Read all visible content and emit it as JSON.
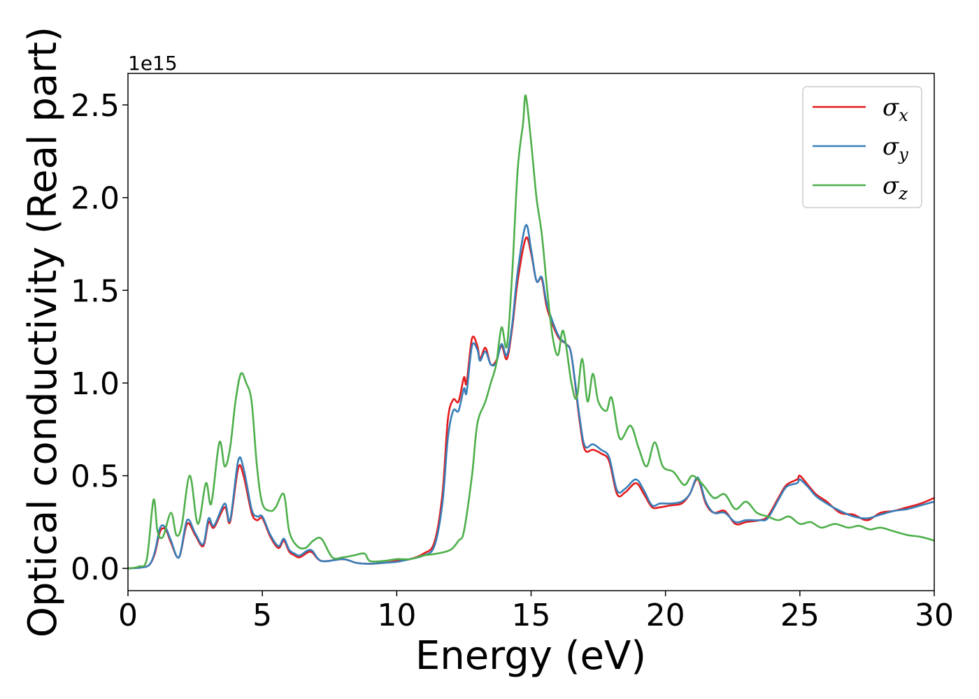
{
  "chart_data": {
    "type": "line",
    "xlabel": "Energy (eV)",
    "ylabel": "Optical conductivity (Real part)",
    "y_offset_label": "1e15",
    "xlim": [
      0,
      30
    ],
    "ylim": [
      -0.12,
      2.67
    ],
    "x_ticks": [
      0,
      5,
      10,
      15,
      20,
      25,
      30
    ],
    "x_tick_labels": [
      "0",
      "5",
      "10",
      "15",
      "20",
      "25",
      "30"
    ],
    "y_ticks": [
      0.0,
      0.5,
      1.0,
      1.5,
      2.0,
      2.5
    ],
    "y_tick_labels": [
      "0.0",
      "0.5",
      "1.0",
      "1.5",
      "2.0",
      "2.5"
    ],
    "grid": false,
    "legend_position": "top-right",
    "series": [
      {
        "name": "σ",
        "subscript": "x",
        "color": "#e41a1c",
        "points": [
          [
            0,
            0
          ],
          [
            0.5,
            0.005
          ],
          [
            0.8,
            0.02
          ],
          [
            1.0,
            0.08
          ],
          [
            1.2,
            0.2
          ],
          [
            1.4,
            0.21
          ],
          [
            1.6,
            0.14
          ],
          [
            1.9,
            0.06
          ],
          [
            2.2,
            0.24
          ],
          [
            2.5,
            0.18
          ],
          [
            2.8,
            0.12
          ],
          [
            3.0,
            0.25
          ],
          [
            3.2,
            0.22
          ],
          [
            3.6,
            0.33
          ],
          [
            3.8,
            0.25
          ],
          [
            4.1,
            0.54
          ],
          [
            4.3,
            0.5
          ],
          [
            4.6,
            0.3
          ],
          [
            4.8,
            0.26
          ],
          [
            5.0,
            0.27
          ],
          [
            5.3,
            0.17
          ],
          [
            5.6,
            0.11
          ],
          [
            5.8,
            0.15
          ],
          [
            6.0,
            0.09
          ],
          [
            6.2,
            0.07
          ],
          [
            6.4,
            0.06
          ],
          [
            6.8,
            0.09
          ],
          [
            7.2,
            0.04
          ],
          [
            8.0,
            0.05
          ],
          [
            8.5,
            0.03
          ],
          [
            9.0,
            0.025
          ],
          [
            9.5,
            0.03
          ],
          [
            10.0,
            0.04
          ],
          [
            10.5,
            0.05
          ],
          [
            11.0,
            0.08
          ],
          [
            11.4,
            0.14
          ],
          [
            11.7,
            0.4
          ],
          [
            11.9,
            0.8
          ],
          [
            12.1,
            0.91
          ],
          [
            12.3,
            0.9
          ],
          [
            12.5,
            1.03
          ],
          [
            12.6,
            1.0
          ],
          [
            12.8,
            1.24
          ],
          [
            13.0,
            1.2
          ],
          [
            13.1,
            1.13
          ],
          [
            13.3,
            1.19
          ],
          [
            13.5,
            1.1
          ],
          [
            13.7,
            1.12
          ],
          [
            13.9,
            1.2
          ],
          [
            14.1,
            1.13
          ],
          [
            14.3,
            1.3
          ],
          [
            14.5,
            1.55
          ],
          [
            14.8,
            1.78
          ],
          [
            15.0,
            1.7
          ],
          [
            15.2,
            1.55
          ],
          [
            15.4,
            1.56
          ],
          [
            15.6,
            1.4
          ],
          [
            16.0,
            1.25
          ],
          [
            16.3,
            1.21
          ],
          [
            16.5,
            1.15
          ],
          [
            16.8,
            0.8
          ],
          [
            17.0,
            0.64
          ],
          [
            17.3,
            0.64
          ],
          [
            17.6,
            0.62
          ],
          [
            17.9,
            0.58
          ],
          [
            18.2,
            0.4
          ],
          [
            18.5,
            0.41
          ],
          [
            18.9,
            0.46
          ],
          [
            19.2,
            0.4
          ],
          [
            19.5,
            0.33
          ],
          [
            19.8,
            0.33
          ],
          [
            20.2,
            0.34
          ],
          [
            20.6,
            0.35
          ],
          [
            20.9,
            0.4
          ],
          [
            21.2,
            0.48
          ],
          [
            21.5,
            0.35
          ],
          [
            21.8,
            0.3
          ],
          [
            22.2,
            0.31
          ],
          [
            22.6,
            0.24
          ],
          [
            23.0,
            0.25
          ],
          [
            23.5,
            0.26
          ],
          [
            23.8,
            0.28
          ],
          [
            24.2,
            0.38
          ],
          [
            24.5,
            0.45
          ],
          [
            24.9,
            0.48
          ],
          [
            25.0,
            0.5
          ],
          [
            25.3,
            0.45
          ],
          [
            25.6,
            0.4
          ],
          [
            26.0,
            0.36
          ],
          [
            26.5,
            0.3
          ],
          [
            27.0,
            0.29
          ],
          [
            27.5,
            0.26
          ],
          [
            28.0,
            0.3
          ],
          [
            28.5,
            0.31
          ],
          [
            29.0,
            0.33
          ],
          [
            29.5,
            0.35
          ],
          [
            30.0,
            0.38
          ]
        ]
      },
      {
        "name": "σ",
        "subscript": "y",
        "color": "#377eb8",
        "points": [
          [
            0,
            0
          ],
          [
            0.5,
            0.005
          ],
          [
            0.8,
            0.02
          ],
          [
            1.0,
            0.09
          ],
          [
            1.2,
            0.22
          ],
          [
            1.4,
            0.22
          ],
          [
            1.6,
            0.15
          ],
          [
            1.9,
            0.06
          ],
          [
            2.2,
            0.26
          ],
          [
            2.5,
            0.19
          ],
          [
            2.8,
            0.13
          ],
          [
            3.0,
            0.27
          ],
          [
            3.2,
            0.23
          ],
          [
            3.6,
            0.35
          ],
          [
            3.8,
            0.26
          ],
          [
            4.1,
            0.58
          ],
          [
            4.3,
            0.54
          ],
          [
            4.6,
            0.32
          ],
          [
            4.8,
            0.28
          ],
          [
            5.0,
            0.28
          ],
          [
            5.3,
            0.18
          ],
          [
            5.6,
            0.12
          ],
          [
            5.8,
            0.16
          ],
          [
            6.0,
            0.1
          ],
          [
            6.2,
            0.08
          ],
          [
            6.4,
            0.07
          ],
          [
            6.8,
            0.1
          ],
          [
            7.2,
            0.04
          ],
          [
            8.0,
            0.05
          ],
          [
            8.5,
            0.03
          ],
          [
            9.0,
            0.025
          ],
          [
            9.5,
            0.03
          ],
          [
            10.0,
            0.035
          ],
          [
            10.5,
            0.05
          ],
          [
            11.0,
            0.07
          ],
          [
            11.4,
            0.12
          ],
          [
            11.7,
            0.35
          ],
          [
            11.9,
            0.7
          ],
          [
            12.1,
            0.85
          ],
          [
            12.3,
            0.85
          ],
          [
            12.5,
            0.97
          ],
          [
            12.6,
            0.95
          ],
          [
            12.8,
            1.2
          ],
          [
            13.0,
            1.18
          ],
          [
            13.1,
            1.12
          ],
          [
            13.3,
            1.17
          ],
          [
            13.5,
            1.1
          ],
          [
            13.7,
            1.11
          ],
          [
            13.9,
            1.21
          ],
          [
            14.1,
            1.15
          ],
          [
            14.3,
            1.32
          ],
          [
            14.5,
            1.6
          ],
          [
            14.8,
            1.85
          ],
          [
            15.0,
            1.72
          ],
          [
            15.2,
            1.55
          ],
          [
            15.4,
            1.57
          ],
          [
            15.6,
            1.42
          ],
          [
            16.0,
            1.26
          ],
          [
            16.3,
            1.21
          ],
          [
            16.5,
            1.15
          ],
          [
            16.8,
            0.82
          ],
          [
            17.0,
            0.66
          ],
          [
            17.3,
            0.67
          ],
          [
            17.6,
            0.64
          ],
          [
            17.9,
            0.6
          ],
          [
            18.2,
            0.42
          ],
          [
            18.5,
            0.43
          ],
          [
            18.9,
            0.48
          ],
          [
            19.2,
            0.42
          ],
          [
            19.5,
            0.34
          ],
          [
            19.8,
            0.35
          ],
          [
            20.2,
            0.35
          ],
          [
            20.6,
            0.36
          ],
          [
            20.9,
            0.4
          ],
          [
            21.2,
            0.49
          ],
          [
            21.5,
            0.36
          ],
          [
            21.8,
            0.3
          ],
          [
            22.2,
            0.3
          ],
          [
            22.6,
            0.25
          ],
          [
            23.0,
            0.26
          ],
          [
            23.5,
            0.26
          ],
          [
            23.8,
            0.27
          ],
          [
            24.2,
            0.37
          ],
          [
            24.5,
            0.44
          ],
          [
            24.9,
            0.46
          ],
          [
            25.0,
            0.48
          ],
          [
            25.3,
            0.44
          ],
          [
            25.6,
            0.39
          ],
          [
            26.0,
            0.35
          ],
          [
            26.5,
            0.31
          ],
          [
            27.0,
            0.28
          ],
          [
            27.5,
            0.27
          ],
          [
            28.0,
            0.29
          ],
          [
            28.5,
            0.31
          ],
          [
            29.0,
            0.32
          ],
          [
            29.5,
            0.34
          ],
          [
            30.0,
            0.36
          ]
        ]
      },
      {
        "name": "σ",
        "subscript": "z",
        "color": "#4daf4a",
        "points": [
          [
            0,
            0
          ],
          [
            0.4,
            0.01
          ],
          [
            0.7,
            0.05
          ],
          [
            0.95,
            0.37
          ],
          [
            1.1,
            0.2
          ],
          [
            1.3,
            0.17
          ],
          [
            1.6,
            0.3
          ],
          [
            1.8,
            0.18
          ],
          [
            2.0,
            0.23
          ],
          [
            2.3,
            0.5
          ],
          [
            2.6,
            0.24
          ],
          [
            2.9,
            0.46
          ],
          [
            3.1,
            0.35
          ],
          [
            3.4,
            0.68
          ],
          [
            3.6,
            0.55
          ],
          [
            3.8,
            0.65
          ],
          [
            4.0,
            0.9
          ],
          [
            4.2,
            1.05
          ],
          [
            4.4,
            1.0
          ],
          [
            4.6,
            0.9
          ],
          [
            4.8,
            0.55
          ],
          [
            5.0,
            0.35
          ],
          [
            5.3,
            0.31
          ],
          [
            5.5,
            0.33
          ],
          [
            5.8,
            0.4
          ],
          [
            6.0,
            0.2
          ],
          [
            6.3,
            0.12
          ],
          [
            6.6,
            0.11
          ],
          [
            6.9,
            0.15
          ],
          [
            7.2,
            0.16
          ],
          [
            7.6,
            0.06
          ],
          [
            8.0,
            0.06
          ],
          [
            8.4,
            0.07
          ],
          [
            8.8,
            0.08
          ],
          [
            9.0,
            0.04
          ],
          [
            9.5,
            0.04
          ],
          [
            10.0,
            0.05
          ],
          [
            10.5,
            0.05
          ],
          [
            11.0,
            0.07
          ],
          [
            11.5,
            0.08
          ],
          [
            12.0,
            0.1
          ],
          [
            12.3,
            0.15
          ],
          [
            12.5,
            0.2
          ],
          [
            12.8,
            0.5
          ],
          [
            13.0,
            0.78
          ],
          [
            13.3,
            0.9
          ],
          [
            13.5,
            1.0
          ],
          [
            13.7,
            1.1
          ],
          [
            13.9,
            1.3
          ],
          [
            14.1,
            1.2
          ],
          [
            14.3,
            1.6
          ],
          [
            14.5,
            2.15
          ],
          [
            14.7,
            2.4
          ],
          [
            14.8,
            2.55
          ],
          [
            15.0,
            2.3
          ],
          [
            15.2,
            2.0
          ],
          [
            15.4,
            1.8
          ],
          [
            15.6,
            1.5
          ],
          [
            15.8,
            1.25
          ],
          [
            16.0,
            1.15
          ],
          [
            16.2,
            1.28
          ],
          [
            16.5,
            1.0
          ],
          [
            16.7,
            0.92
          ],
          [
            16.9,
            1.13
          ],
          [
            17.1,
            0.9
          ],
          [
            17.3,
            1.05
          ],
          [
            17.5,
            0.9
          ],
          [
            17.8,
            0.85
          ],
          [
            18.0,
            0.92
          ],
          [
            18.3,
            0.7
          ],
          [
            18.7,
            0.77
          ],
          [
            19.0,
            0.65
          ],
          [
            19.3,
            0.55
          ],
          [
            19.6,
            0.68
          ],
          [
            19.9,
            0.55
          ],
          [
            20.3,
            0.52
          ],
          [
            20.7,
            0.45
          ],
          [
            21.0,
            0.5
          ],
          [
            21.4,
            0.45
          ],
          [
            21.8,
            0.38
          ],
          [
            22.2,
            0.4
          ],
          [
            22.6,
            0.32
          ],
          [
            23.0,
            0.36
          ],
          [
            23.4,
            0.3
          ],
          [
            23.8,
            0.28
          ],
          [
            24.2,
            0.26
          ],
          [
            24.6,
            0.28
          ],
          [
            25.0,
            0.24
          ],
          [
            25.4,
            0.25
          ],
          [
            25.8,
            0.22
          ],
          [
            26.3,
            0.24
          ],
          [
            26.8,
            0.22
          ],
          [
            27.2,
            0.23
          ],
          [
            27.6,
            0.21
          ],
          [
            28.0,
            0.22
          ],
          [
            28.5,
            0.2
          ],
          [
            29.0,
            0.18
          ],
          [
            29.5,
            0.17
          ],
          [
            30.0,
            0.15
          ]
        ]
      }
    ]
  }
}
